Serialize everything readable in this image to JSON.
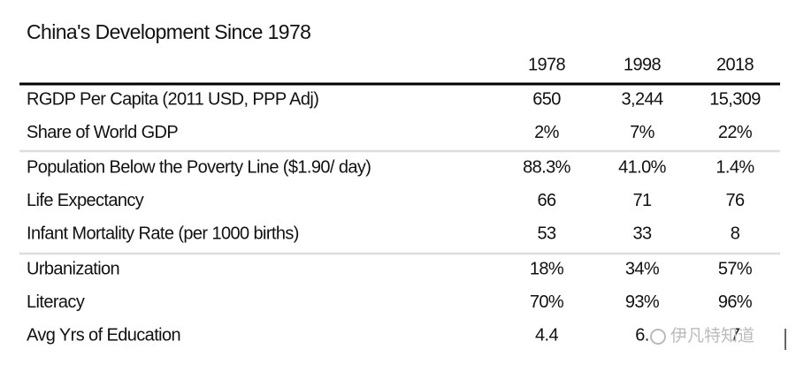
{
  "title": "China's Development Since 1978",
  "table": {
    "columns": [
      "1978",
      "1998",
      "2018"
    ],
    "groups": [
      [
        [
          "RGDP Per Capita (2011 USD, PPP Adj)",
          "650",
          "3,244",
          "15,309"
        ],
        [
          "Share of World GDP",
          "2%",
          "7%",
          "22%"
        ]
      ],
      [
        [
          "Population Below the Poverty Line ($1.90/ day)",
          "88.3%",
          "41.0%",
          "1.4%"
        ],
        [
          "Life Expectancy",
          "66",
          "71",
          "76"
        ],
        [
          "Infant Mortality Rate (per 1000 births)",
          "53",
          "33",
          "8"
        ]
      ],
      [
        [
          "Urbanization",
          "18%",
          "34%",
          "57%"
        ],
        [
          "Literacy",
          "70%",
          "93%",
          "96%"
        ],
        [
          "Avg Yrs of Education",
          "4.4",
          "6.",
          "7"
        ]
      ]
    ]
  },
  "watermark": "伊凡特知道"
}
